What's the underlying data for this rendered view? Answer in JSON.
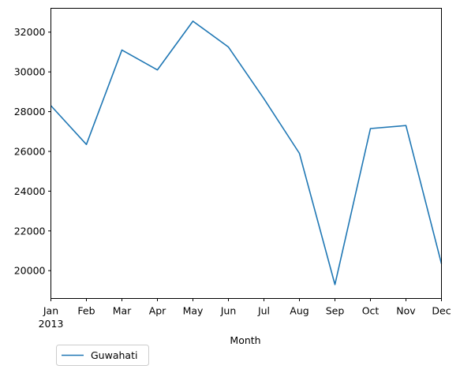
{
  "chart_data": {
    "type": "line",
    "categories": [
      "Jan",
      "Feb",
      "Mar",
      "Apr",
      "May",
      "Jun",
      "Jul",
      "Aug",
      "Sep",
      "Oct",
      "Nov",
      "Dec"
    ],
    "year_label": "2013",
    "xlabel": "Month",
    "ylabel": "",
    "title": "",
    "ylim": [
      18600,
      33200
    ],
    "yticks": [
      20000,
      22000,
      24000,
      26000,
      28000,
      30000,
      32000
    ],
    "grid": false,
    "legend_position": "below-left",
    "series": [
      {
        "name": "Guwahati",
        "color": "#1f77b4",
        "values": [
          28300,
          26350,
          31100,
          30100,
          32550,
          31250,
          28650,
          25900,
          19300,
          27150,
          27300,
          20350
        ]
      }
    ]
  }
}
